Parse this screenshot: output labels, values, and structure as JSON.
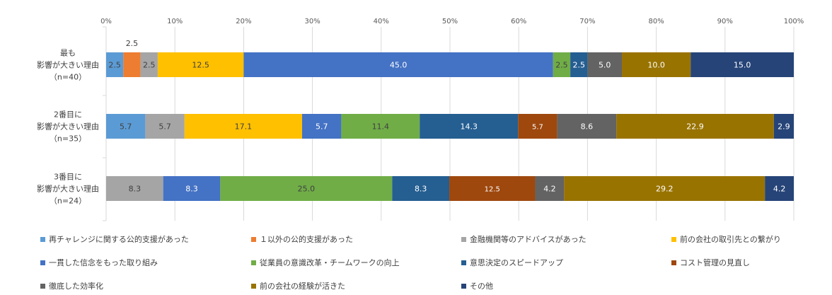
{
  "chart_data": {
    "type": "bar",
    "orientation": "horizontal",
    "stacked": "100%",
    "x_ticks": [
      "0%",
      "10%",
      "20%",
      "30%",
      "40%",
      "50%",
      "60%",
      "70%",
      "80%",
      "90%",
      "100%"
    ],
    "xlim": [
      0,
      100
    ],
    "grid": "vertical",
    "legend_position": "bottom",
    "categories": [
      [
        "最も",
        "影響が大きい理由",
        "（n=40）"
      ],
      [
        "2番目に",
        "影響が大きい理由",
        "（n=35）"
      ],
      [
        "3番目に",
        "影響が大きい理由",
        "（n=24）"
      ]
    ],
    "series": [
      {
        "name": "再チャレンジに関する公的支援があった",
        "color": "#5b9bd5",
        "label_color": "#404040",
        "values": [
          2.5,
          5.7,
          0
        ]
      },
      {
        "name": "１以外の公的支援があった",
        "color": "#ed7d31",
        "label_color": "#404040",
        "values": [
          2.5,
          0,
          0
        ]
      },
      {
        "name": "金融機関等のアドバイスがあった",
        "color": "#a5a5a5",
        "label_color": "#404040",
        "values": [
          2.5,
          5.7,
          8.3
        ]
      },
      {
        "name": "前の会社の取引先との繋がり",
        "color": "#ffc000",
        "label_color": "#404040",
        "values": [
          12.5,
          17.1,
          0
        ]
      },
      {
        "name": "一貫した信念をもった取り組み",
        "color": "#4472c4",
        "label_color": "#ffffff",
        "values": [
          45.0,
          5.7,
          8.3
        ]
      },
      {
        "name": "従業員の意識改革・チームワークの向上",
        "color": "#70ad47",
        "label_color": "#404040",
        "values": [
          2.5,
          11.4,
          25.0
        ]
      },
      {
        "name": "意思決定のスピードアップ",
        "color": "#255e91",
        "label_color": "#ffffff",
        "values": [
          2.5,
          14.3,
          8.3
        ]
      },
      {
        "name": "コスト管理の見直し",
        "color": "#9e480e",
        "label_color": "#ffffff",
        "values": [
          0,
          5.7,
          12.5
        ]
      },
      {
        "name": "徹底した効率化",
        "color": "#636363",
        "label_color": "#ffffff",
        "values": [
          5.0,
          8.6,
          4.2
        ]
      },
      {
        "name": "前の会社の経験が活きた",
        "color": "#997300",
        "label_color": "#ffffff",
        "values": [
          10.0,
          22.9,
          29.2
        ]
      },
      {
        "name": "その他",
        "color": "#264478",
        "label_color": "#ffffff",
        "values": [
          15.0,
          2.9,
          4.2
        ]
      }
    ],
    "outside_labels": [
      {
        "row": 0,
        "series": 1,
        "text": "2.5"
      }
    ]
  }
}
